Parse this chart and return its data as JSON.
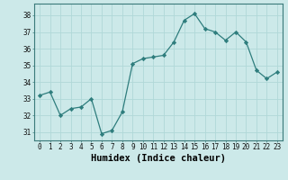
{
  "x": [
    0,
    1,
    2,
    3,
    4,
    5,
    6,
    7,
    8,
    9,
    10,
    11,
    12,
    13,
    14,
    15,
    16,
    17,
    18,
    19,
    20,
    21,
    22,
    23
  ],
  "y": [
    33.2,
    33.4,
    32.0,
    32.4,
    32.5,
    33.0,
    30.9,
    31.1,
    32.2,
    35.1,
    35.4,
    35.5,
    35.6,
    36.4,
    37.7,
    38.1,
    37.2,
    37.0,
    36.5,
    37.0,
    36.4,
    34.7,
    34.2,
    34.6
  ],
  "line_color": "#2e7d7d",
  "marker": "D",
  "marker_size": 2.2,
  "bg_color": "#cce9e9",
  "grid_color": "#b0d8d8",
  "xlabel": "Humidex (Indice chaleur)",
  "ylim": [
    30.5,
    38.7
  ],
  "xlim": [
    -0.5,
    23.5
  ],
  "yticks": [
    31,
    32,
    33,
    34,
    35,
    36,
    37,
    38
  ],
  "xticks": [
    0,
    1,
    2,
    3,
    4,
    5,
    6,
    7,
    8,
    9,
    10,
    11,
    12,
    13,
    14,
    15,
    16,
    17,
    18,
    19,
    20,
    21,
    22,
    23
  ],
  "tick_labelsize": 5.5,
  "xlabel_fontsize": 7.5
}
